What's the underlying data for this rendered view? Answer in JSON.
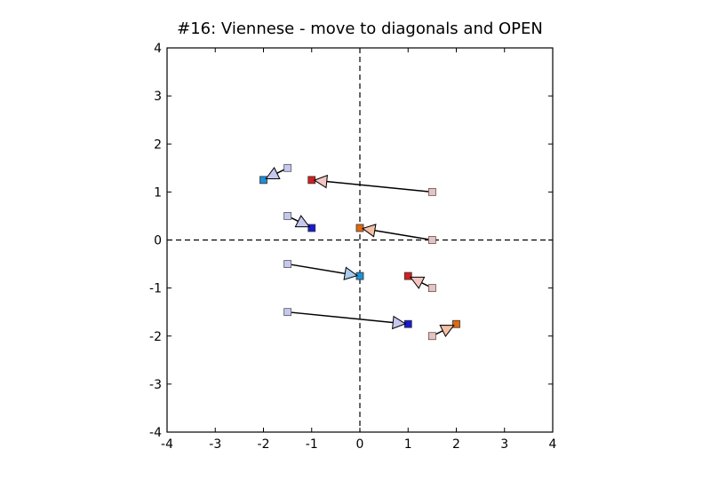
{
  "chart_data": {
    "type": "scatter",
    "title": "#16: Viennese - move to diagonals and OPEN",
    "xlabel": "",
    "ylabel": "",
    "xlim": [
      -4,
      4
    ],
    "ylim": [
      -4,
      4
    ],
    "xticks": [
      "-4",
      "-3",
      "-2",
      "-1",
      "0",
      "1",
      "2",
      "3",
      "4"
    ],
    "yticks": [
      "-4",
      "-3",
      "-2",
      "-1",
      "0",
      "1",
      "2",
      "3",
      "4"
    ],
    "grid": false,
    "reference_lines": [
      "x = 0 dashed",
      "y = 0 dashed"
    ],
    "moves": [
      {
        "from": [
          -1.5,
          1.5
        ],
        "to": [
          -2.0,
          1.25
        ],
        "start_color": "#c5c8ee",
        "end_color": "#1f8fd6",
        "arrow_color": "#c5c8ee"
      },
      {
        "from": [
          1.5,
          1.0
        ],
        "to": [
          -1.0,
          1.25
        ],
        "start_color": "#ecc0c0",
        "end_color": "#d02020",
        "arrow_color": "#f5c6c0"
      },
      {
        "from": [
          -1.5,
          0.5
        ],
        "to": [
          -1.0,
          0.25
        ],
        "start_color": "#c5c8ee",
        "end_color": "#1a1ad0",
        "arrow_color": "#c5c8ee"
      },
      {
        "from": [
          1.5,
          0.0
        ],
        "to": [
          0.0,
          0.25
        ],
        "start_color": "#ecc0c0",
        "end_color": "#e06a10",
        "arrow_color": "#f5c0a8"
      },
      {
        "from": [
          -1.5,
          -0.5
        ],
        "to": [
          0.0,
          -0.75
        ],
        "start_color": "#c5c8ee",
        "end_color": "#1f8fd6",
        "arrow_color": "#a9cdee"
      },
      {
        "from": [
          1.5,
          -1.0
        ],
        "to": [
          1.0,
          -0.75
        ],
        "start_color": "#ecc0c0",
        "end_color": "#d02020",
        "arrow_color": "#f5c6c0"
      },
      {
        "from": [
          -1.5,
          -1.5
        ],
        "to": [
          1.0,
          -1.75
        ],
        "start_color": "#c5c8ee",
        "end_color": "#1a1ad0",
        "arrow_color": "#c5c8ee"
      },
      {
        "from": [
          1.5,
          -2.0
        ],
        "to": [
          2.0,
          -1.75
        ],
        "start_color": "#ecc0c0",
        "end_color": "#e06a10",
        "arrow_color": "#f5c0a8"
      }
    ]
  }
}
